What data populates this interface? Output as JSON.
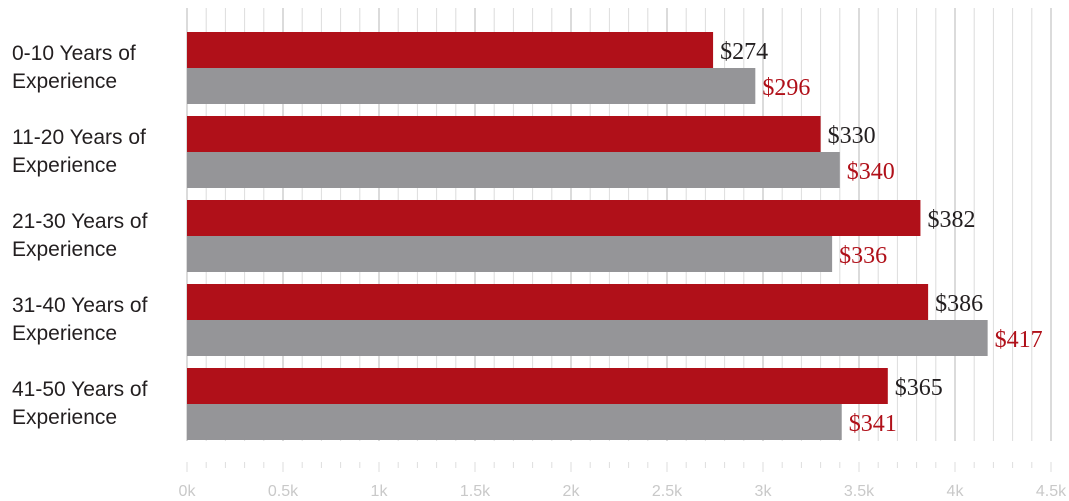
{
  "chart_data": {
    "type": "bar",
    "orientation": "horizontal",
    "categories": [
      "0-10  Years of\nExperience",
      "11-20  Years of\nExperience",
      "21-30  Years of\nExperience",
      "31-40  Years of\nExperience",
      "41-50  Years of\nExperience"
    ],
    "series": [
      {
        "color": "#b01019",
        "label_color": "#231f20",
        "values": [
          2740,
          3300,
          3820,
          3860,
          3650
        ],
        "data_labels": [
          "$274",
          "$330",
          "$382",
          "$386",
          "$365"
        ]
      },
      {
        "color": "#959598",
        "label_color": "#b01019",
        "values": [
          2960,
          3400,
          3360,
          4170,
          3410
        ],
        "data_labels": [
          "$296",
          "$340",
          "$336",
          "$417",
          "$341"
        ]
      }
    ],
    "x_ticks": [
      "0k",
      "0.5k",
      "1k",
      "1.5k",
      "2k",
      "2.5k",
      "3k",
      "3.5k",
      "4k",
      "4.5k"
    ],
    "xlim": [
      0,
      4500
    ],
    "grid": true,
    "legend": "none"
  }
}
